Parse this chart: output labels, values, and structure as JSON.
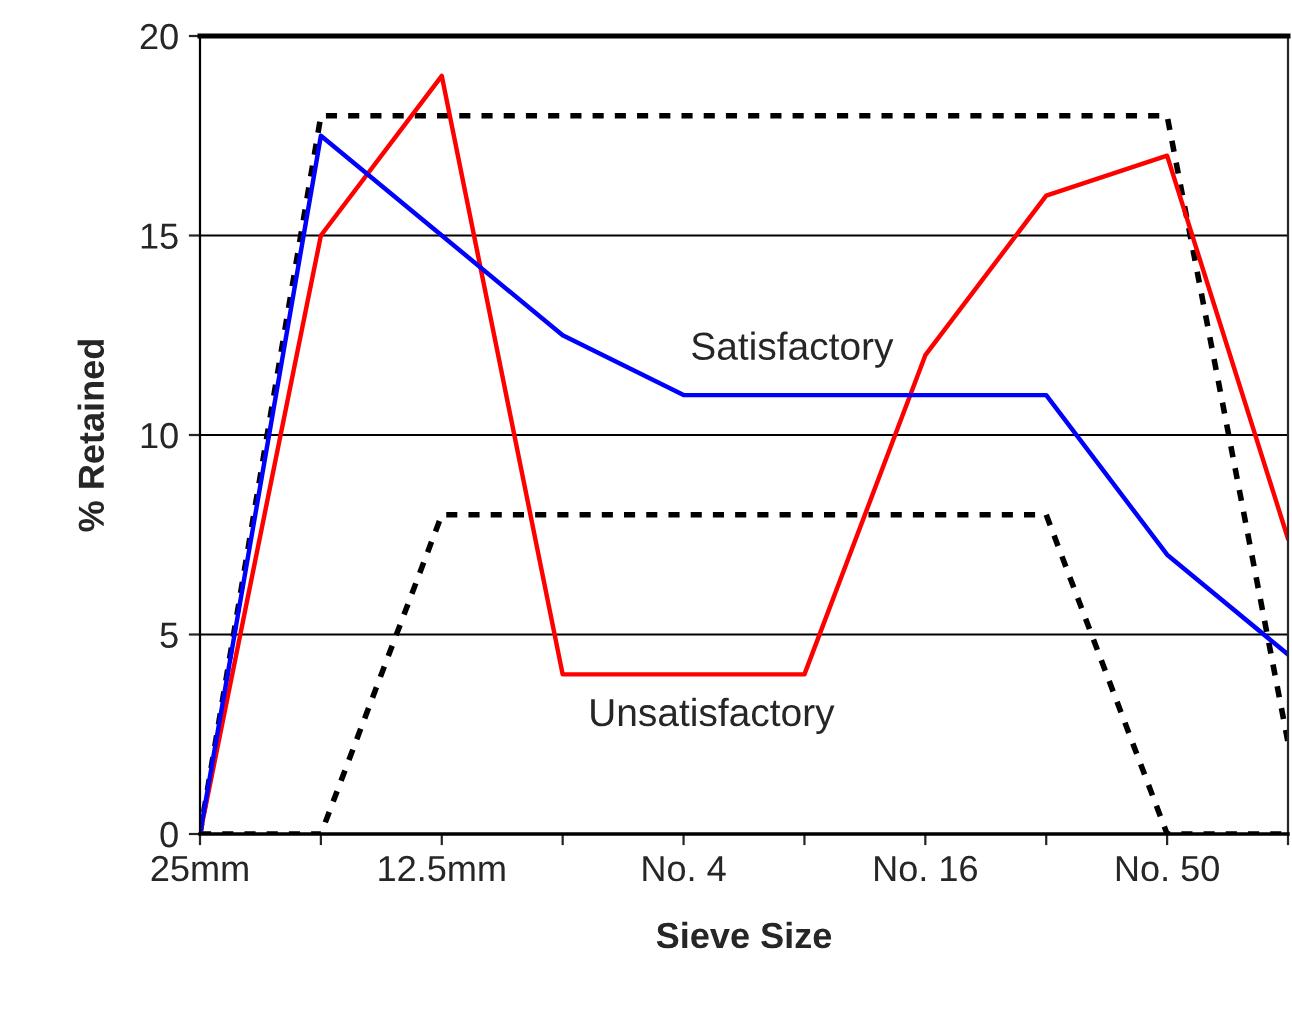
{
  "chart_data": {
    "type": "line",
    "xlabel": "Sieve Size",
    "ylabel": "% Retained",
    "categories": [
      "25mm",
      null,
      "12.5mm",
      null,
      "No. 4",
      null,
      "No. 16",
      null,
      "No. 50",
      null
    ],
    "ylim": [
      0,
      20
    ],
    "yticks": [
      0,
      5,
      10,
      15,
      20
    ],
    "grid": "y",
    "legend": false,
    "marker": "none",
    "series": [
      {
        "color": "#000000",
        "line_style": "dotted",
        "values": [
          0,
          18,
          18,
          18,
          18,
          18,
          18,
          18,
          18,
          2.3
        ]
      },
      {
        "color": "#000000",
        "line_style": "dotted",
        "values": [
          0,
          0,
          8,
          8,
          8,
          8,
          8,
          8,
          0,
          0
        ]
      },
      {
        "color": "#ff0000",
        "line_style": "solid",
        "values": [
          0,
          15,
          19,
          4,
          4,
          4,
          12,
          16,
          17,
          7.4
        ]
      },
      {
        "color": "#0000ff",
        "line_style": "solid",
        "values": [
          0,
          17.5,
          15,
          12.5,
          11,
          11,
          11,
          11,
          7,
          4.5
        ]
      }
    ],
    "annotations": [
      "Satisfactory",
      "Unsatisfactory"
    ]
  }
}
